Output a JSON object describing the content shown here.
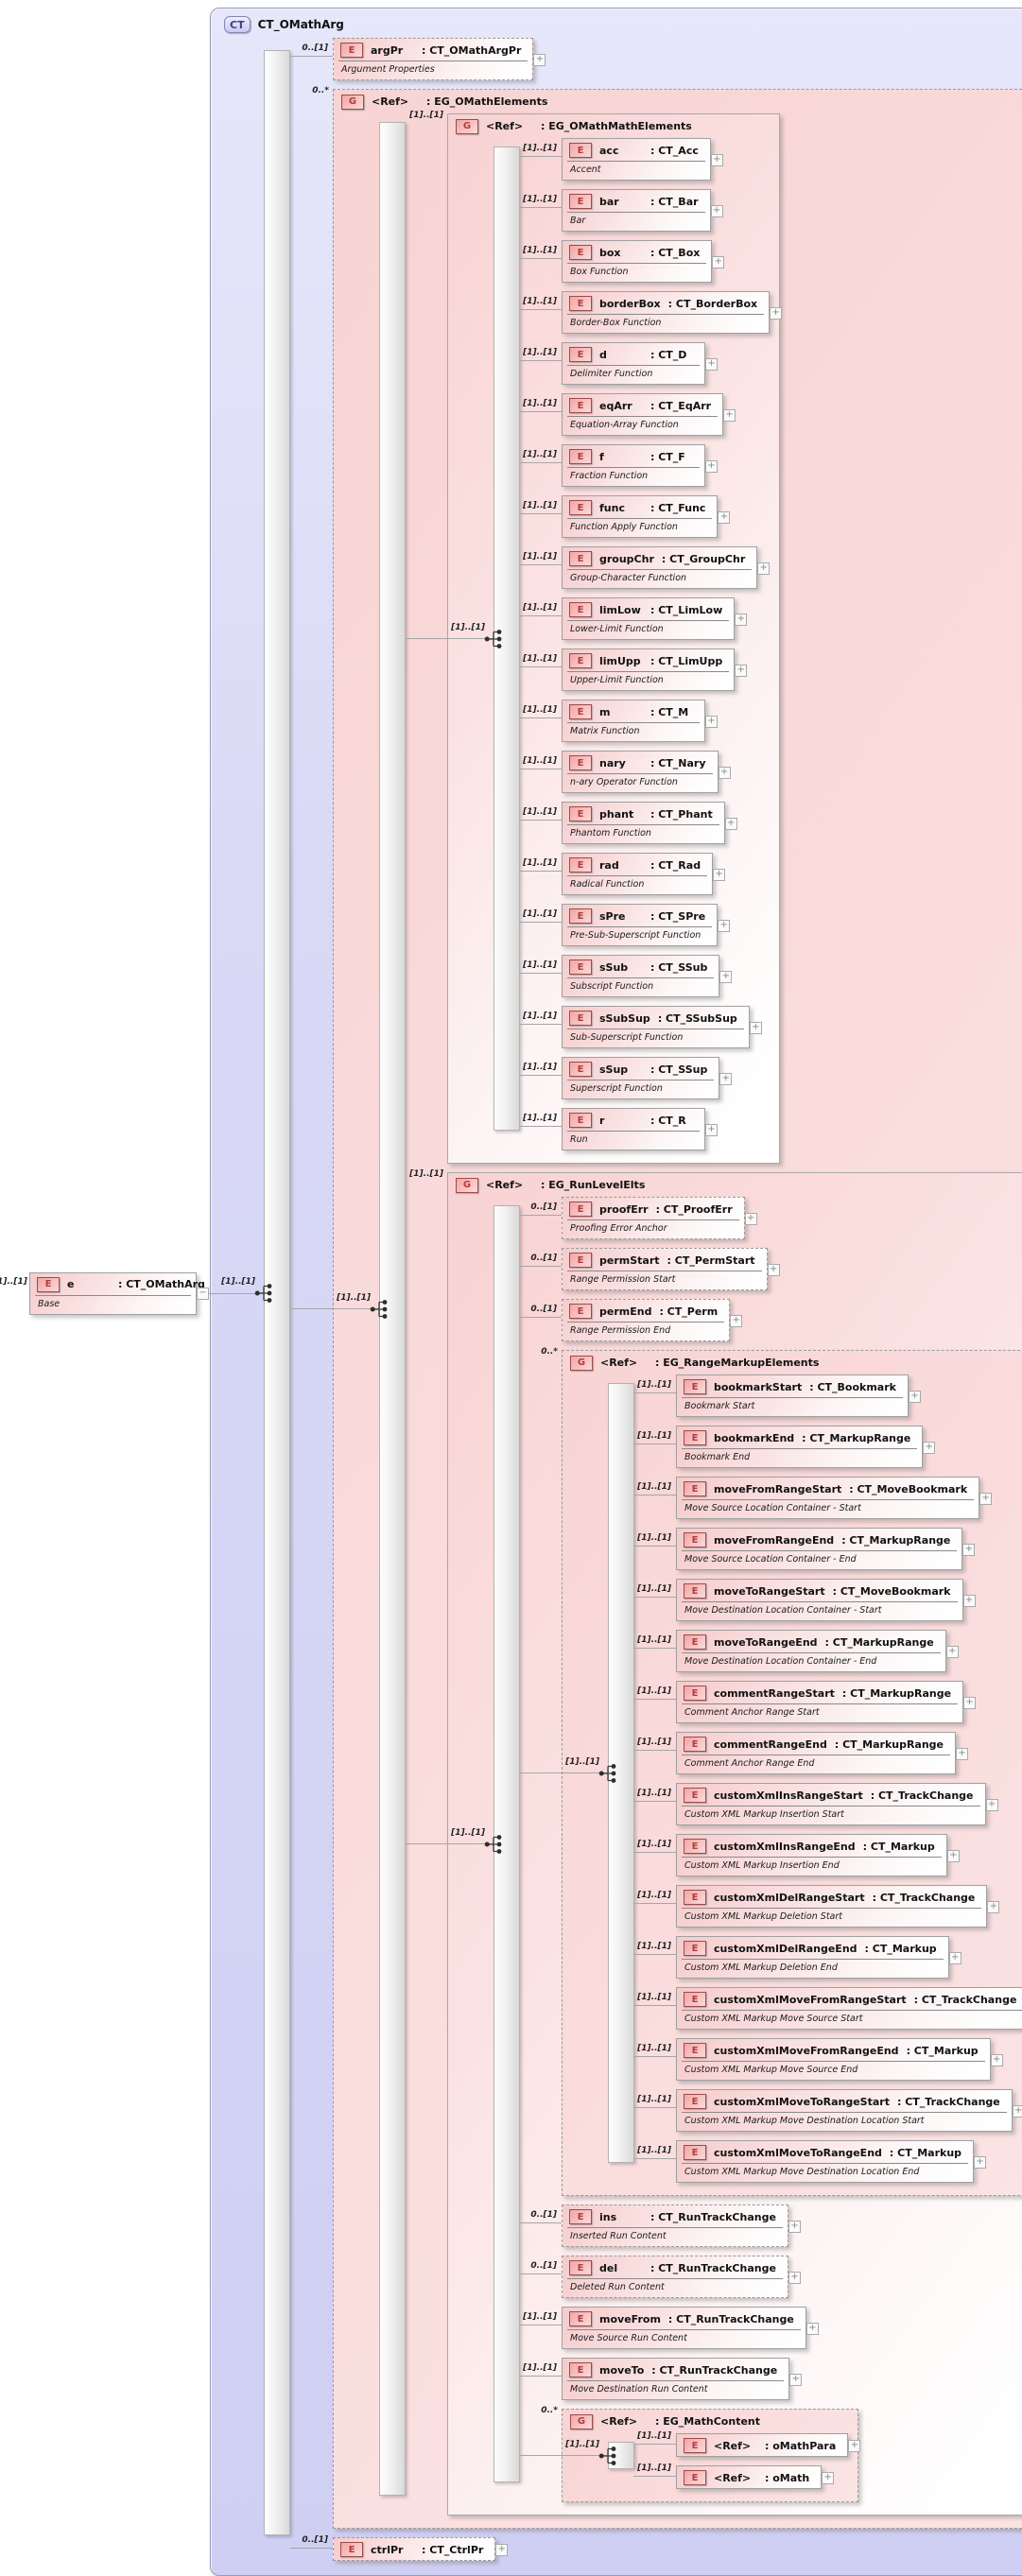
{
  "diagram": {
    "icons": {
      "expand": "+",
      "collapse": "−",
      "compositor": "choice-sequence-icon"
    },
    "colors": {
      "container_fill": "#d9d9f6",
      "container_border": "#9a9ab8",
      "group_fill": "#f8d6d6",
      "element_fill": "#f6cbcb",
      "badge_border": "#9c4a4a",
      "badge_text": "#b43c3c",
      "ct_badge_text": "#3c3c8c",
      "connector": "#a6a6a6"
    },
    "source_element": {
      "kind": "element",
      "badge": "E",
      "cardinality": "[1]..[1]",
      "name": "e",
      "type": ": CT_OMathArg",
      "annotation": "Base",
      "collapse": true
    },
    "container": {
      "badge": "CT",
      "title": "CT_OMathArg",
      "compositor_cardinality": "[1]..[1]",
      "children": [
        {
          "kind": "element",
          "badge": "E",
          "cardinality": "0..[1]",
          "optional": true,
          "name": "argPr",
          "type": ": CT_OMathArgPr",
          "annotation": "Argument Properties"
        },
        {
          "kind": "group",
          "badge": "G",
          "cardinality": "0..*",
          "optional": true,
          "name": "<Ref>",
          "type": ": EG_OMathElements",
          "compositor_cardinality": "[1]..[1]",
          "children": [
            {
              "kind": "group",
              "badge": "G",
              "cardinality": "[1]..[1]",
              "name": "<Ref>",
              "type": ": EG_OMathMathElements",
              "compositor_cardinality": "[1]..[1]",
              "children": [
                {
                  "kind": "element",
                  "badge": "E",
                  "cardinality": "[1]..[1]",
                  "name": "acc",
                  "type": ": CT_Acc",
                  "annotation": "Accent"
                },
                {
                  "kind": "element",
                  "badge": "E",
                  "cardinality": "[1]..[1]",
                  "name": "bar",
                  "type": ": CT_Bar",
                  "annotation": "Bar"
                },
                {
                  "kind": "element",
                  "badge": "E",
                  "cardinality": "[1]..[1]",
                  "name": "box",
                  "type": ": CT_Box",
                  "annotation": "Box Function"
                },
                {
                  "kind": "element",
                  "badge": "E",
                  "cardinality": "[1]..[1]",
                  "name": "borderBox",
                  "type": ": CT_BorderBox",
                  "annotation": "Border-Box Function"
                },
                {
                  "kind": "element",
                  "badge": "E",
                  "cardinality": "[1]..[1]",
                  "name": "d",
                  "type": ": CT_D",
                  "annotation": "Delimiter Function"
                },
                {
                  "kind": "element",
                  "badge": "E",
                  "cardinality": "[1]..[1]",
                  "name": "eqArr",
                  "type": ": CT_EqArr",
                  "annotation": "Equation-Array Function"
                },
                {
                  "kind": "element",
                  "badge": "E",
                  "cardinality": "[1]..[1]",
                  "name": "f",
                  "type": ": CT_F",
                  "annotation": "Fraction Function"
                },
                {
                  "kind": "element",
                  "badge": "E",
                  "cardinality": "[1]..[1]",
                  "name": "func",
                  "type": ": CT_Func",
                  "annotation": "Function Apply Function"
                },
                {
                  "kind": "element",
                  "badge": "E",
                  "cardinality": "[1]..[1]",
                  "name": "groupChr",
                  "type": ": CT_GroupChr",
                  "annotation": "Group-Character Function"
                },
                {
                  "kind": "element",
                  "badge": "E",
                  "cardinality": "[1]..[1]",
                  "name": "limLow",
                  "type": ": CT_LimLow",
                  "annotation": "Lower-Limit Function"
                },
                {
                  "kind": "element",
                  "badge": "E",
                  "cardinality": "[1]..[1]",
                  "name": "limUpp",
                  "type": ": CT_LimUpp",
                  "annotation": "Upper-Limit Function"
                },
                {
                  "kind": "element",
                  "badge": "E",
                  "cardinality": "[1]..[1]",
                  "name": "m",
                  "type": ": CT_M",
                  "annotation": "Matrix Function"
                },
                {
                  "kind": "element",
                  "badge": "E",
                  "cardinality": "[1]..[1]",
                  "name": "nary",
                  "type": ": CT_Nary",
                  "annotation": "n-ary Operator Function"
                },
                {
                  "kind": "element",
                  "badge": "E",
                  "cardinality": "[1]..[1]",
                  "name": "phant",
                  "type": ": CT_Phant",
                  "annotation": "Phantom Function"
                },
                {
                  "kind": "element",
                  "badge": "E",
                  "cardinality": "[1]..[1]",
                  "name": "rad",
                  "type": ": CT_Rad",
                  "annotation": "Radical Function"
                },
                {
                  "kind": "element",
                  "badge": "E",
                  "cardinality": "[1]..[1]",
                  "name": "sPre",
                  "type": ": CT_SPre",
                  "annotation": "Pre-Sub-Superscript Function"
                },
                {
                  "kind": "element",
                  "badge": "E",
                  "cardinality": "[1]..[1]",
                  "name": "sSub",
                  "type": ": CT_SSub",
                  "annotation": "Subscript Function"
                },
                {
                  "kind": "element",
                  "badge": "E",
                  "cardinality": "[1]..[1]",
                  "name": "sSubSup",
                  "type": ": CT_SSubSup",
                  "annotation": "Sub-Superscript Function"
                },
                {
                  "kind": "element",
                  "badge": "E",
                  "cardinality": "[1]..[1]",
                  "name": "sSup",
                  "type": ": CT_SSup",
                  "annotation": "Superscript Function"
                },
                {
                  "kind": "element",
                  "badge": "E",
                  "cardinality": "[1]..[1]",
                  "name": "r",
                  "type": ": CT_R",
                  "annotation": "Run"
                }
              ]
            },
            {
              "kind": "group",
              "badge": "G",
              "cardinality": "[1]..[1]",
              "name": "<Ref>",
              "type": ": EG_RunLevelElts",
              "compositor_cardinality": "[1]..[1]",
              "children": [
                {
                  "kind": "element",
                  "badge": "E",
                  "cardinality": "0..[1]",
                  "optional": true,
                  "name": "proofErr",
                  "type": ": CT_ProofErr",
                  "annotation": "Proofing Error Anchor"
                },
                {
                  "kind": "element",
                  "badge": "E",
                  "cardinality": "0..[1]",
                  "optional": true,
                  "name": "permStart",
                  "type": ": CT_PermStart",
                  "annotation": "Range Permission Start"
                },
                {
                  "kind": "element",
                  "badge": "E",
                  "cardinality": "0..[1]",
                  "optional": true,
                  "name": "permEnd",
                  "type": ": CT_Perm",
                  "annotation": "Range Permission End"
                },
                {
                  "kind": "group",
                  "badge": "G",
                  "cardinality": "0..*",
                  "optional": true,
                  "name": "<Ref>",
                  "type": ": EG_RangeMarkupElements",
                  "compositor_cardinality": "[1]..[1]",
                  "children": [
                    {
                      "kind": "element",
                      "badge": "E",
                      "cardinality": "[1]..[1]",
                      "name": "bookmarkStart",
                      "type": ": CT_Bookmark",
                      "annotation": "Bookmark Start"
                    },
                    {
                      "kind": "element",
                      "badge": "E",
                      "cardinality": "[1]..[1]",
                      "name": "bookmarkEnd",
                      "type": ": CT_MarkupRange",
                      "annotation": "Bookmark End"
                    },
                    {
                      "kind": "element",
                      "badge": "E",
                      "cardinality": "[1]..[1]",
                      "name": "moveFromRangeStart",
                      "type": ": CT_MoveBookmark",
                      "annotation": "Move Source Location Container - Start"
                    },
                    {
                      "kind": "element",
                      "badge": "E",
                      "cardinality": "[1]..[1]",
                      "name": "moveFromRangeEnd",
                      "type": ": CT_MarkupRange",
                      "annotation": "Move Source Location Container - End"
                    },
                    {
                      "kind": "element",
                      "badge": "E",
                      "cardinality": "[1]..[1]",
                      "name": "moveToRangeStart",
                      "type": ": CT_MoveBookmark",
                      "annotation": "Move Destination Location Container - Start"
                    },
                    {
                      "kind": "element",
                      "badge": "E",
                      "cardinality": "[1]..[1]",
                      "name": "moveToRangeEnd",
                      "type": ": CT_MarkupRange",
                      "annotation": "Move Destination Location Container - End"
                    },
                    {
                      "kind": "element",
                      "badge": "E",
                      "cardinality": "[1]..[1]",
                      "name": "commentRangeStart",
                      "type": ": CT_MarkupRange",
                      "annotation": "Comment Anchor Range Start"
                    },
                    {
                      "kind": "element",
                      "badge": "E",
                      "cardinality": "[1]..[1]",
                      "name": "commentRangeEnd",
                      "type": ": CT_MarkupRange",
                      "annotation": "Comment Anchor Range End"
                    },
                    {
                      "kind": "element",
                      "badge": "E",
                      "cardinality": "[1]..[1]",
                      "name": "customXmlInsRangeStart",
                      "type": ": CT_TrackChange",
                      "annotation": "Custom XML Markup Insertion Start"
                    },
                    {
                      "kind": "element",
                      "badge": "E",
                      "cardinality": "[1]..[1]",
                      "name": "customXmlInsRangeEnd",
                      "type": ": CT_Markup",
                      "annotation": "Custom XML Markup Insertion End"
                    },
                    {
                      "kind": "element",
                      "badge": "E",
                      "cardinality": "[1]..[1]",
                      "name": "customXmlDelRangeStart",
                      "type": ": CT_TrackChange",
                      "annotation": "Custom XML Markup Deletion Start"
                    },
                    {
                      "kind": "element",
                      "badge": "E",
                      "cardinality": "[1]..[1]",
                      "name": "customXmlDelRangeEnd",
                      "type": ": CT_Markup",
                      "annotation": "Custom XML Markup Deletion End"
                    },
                    {
                      "kind": "element",
                      "badge": "E",
                      "cardinality": "[1]..[1]",
                      "name": "customXmlMoveFromRangeStart",
                      "type": ": CT_TrackChange",
                      "annotation": "Custom XML Markup Move Source Start"
                    },
                    {
                      "kind": "element",
                      "badge": "E",
                      "cardinality": "[1]..[1]",
                      "name": "customXmlMoveFromRangeEnd",
                      "type": ": CT_Markup",
                      "annotation": "Custom XML Markup Move Source End"
                    },
                    {
                      "kind": "element",
                      "badge": "E",
                      "cardinality": "[1]..[1]",
                      "name": "customXmlMoveToRangeStart",
                      "type": ": CT_TrackChange",
                      "annotation": "Custom XML Markup Move Destination Location Start"
                    },
                    {
                      "kind": "element",
                      "badge": "E",
                      "cardinality": "[1]..[1]",
                      "name": "customXmlMoveToRangeEnd",
                      "type": ": CT_Markup",
                      "annotation": "Custom XML Markup Move Destination Location End"
                    }
                  ]
                },
                {
                  "kind": "element",
                  "badge": "E",
                  "cardinality": "0..[1]",
                  "optional": true,
                  "name": "ins",
                  "type": ": CT_RunTrackChange",
                  "annotation": "Inserted Run Content"
                },
                {
                  "kind": "element",
                  "badge": "E",
                  "cardinality": "0..[1]",
                  "optional": true,
                  "name": "del",
                  "type": ": CT_RunTrackChange",
                  "annotation": "Deleted Run Content"
                },
                {
                  "kind": "element",
                  "badge": "E",
                  "cardinality": "[1]..[1]",
                  "name": "moveFrom",
                  "type": ": CT_RunTrackChange",
                  "annotation": "Move Source Run Content"
                },
                {
                  "kind": "element",
                  "badge": "E",
                  "cardinality": "[1]..[1]",
                  "name": "moveTo",
                  "type": ": CT_RunTrackChange",
                  "annotation": "Move Destination Run Content"
                },
                {
                  "kind": "group",
                  "badge": "G",
                  "cardinality": "0..*",
                  "optional": true,
                  "name": "<Ref>",
                  "type": ": EG_MathContent",
                  "compositor_cardinality": "[1]..[1]",
                  "children": [
                    {
                      "kind": "element",
                      "badge": "E",
                      "cardinality": "[1]..[1]",
                      "slim": true,
                      "name": "<Ref>",
                      "type": ": oMathPara"
                    },
                    {
                      "kind": "element",
                      "badge": "E",
                      "cardinality": "[1]..[1]",
                      "slim": true,
                      "name": "<Ref>",
                      "type": ": oMath"
                    }
                  ]
                }
              ]
            }
          ]
        },
        {
          "kind": "element",
          "badge": "E",
          "cardinality": "0..[1]",
          "optional": true,
          "slim": true,
          "name": "ctrlPr",
          "type": ": CT_CtrlPr"
        }
      ]
    }
  }
}
